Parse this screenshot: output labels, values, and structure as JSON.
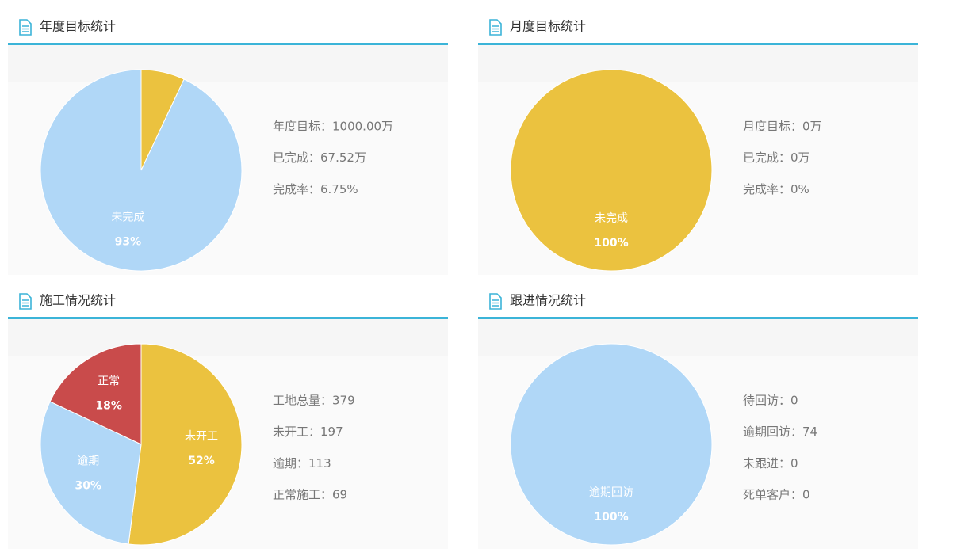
{
  "chart_data": [
    {
      "type": "pie",
      "title": "年度目标统计",
      "categories": [
        null,
        "未完成"
      ],
      "values": [
        7,
        93
      ],
      "value_labels": [
        null,
        "93%"
      ],
      "colors": [
        "#ebc23f",
        "#b0d7f7"
      ]
    },
    {
      "type": "pie",
      "title": "月度目标统计",
      "categories": [
        "未完成"
      ],
      "values": [
        100
      ],
      "value_labels": [
        "100%"
      ],
      "colors": [
        "#ebc23f"
      ]
    },
    {
      "type": "pie",
      "title": "施工情况统计",
      "categories": [
        "未开工",
        "逾期",
        "正常"
      ],
      "values": [
        52,
        30,
        18
      ],
      "value_labels": [
        "52%",
        "30%",
        "18%"
      ],
      "colors": [
        "#ebc23f",
        "#b0d7f7",
        "#c94b4b"
      ]
    },
    {
      "type": "pie",
      "title": "跟进情况统计",
      "categories": [
        "逾期回访"
      ],
      "values": [
        100
      ],
      "value_labels": [
        "100%"
      ],
      "colors": [
        "#b0d7f7"
      ]
    }
  ],
  "panels": [
    {
      "stats": [
        "年度目标：1000.00万",
        "已完成：67.52万",
        "完成率：6.75%"
      ]
    },
    {
      "stats": [
        "月度目标：0万",
        "已完成：0万",
        "完成率：0%"
      ]
    },
    {
      "stats": [
        "工地总量：379",
        "未开工：197",
        "逾期：113",
        "正常施工：69"
      ]
    },
    {
      "stats": [
        "待回访：0",
        "逾期回访：74",
        "未跟进：0",
        "死单客户：0"
      ]
    }
  ]
}
